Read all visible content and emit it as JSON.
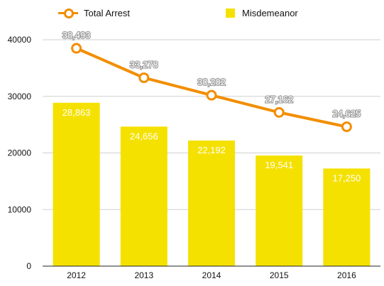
{
  "legend": {
    "line_label": "Total Arrest",
    "bar_label": "Misdemeanor"
  },
  "colors": {
    "line": "#f28e00",
    "bar": "#f5e100",
    "grid": "#d0d0d0",
    "label_stroke": "#9a9a9a"
  },
  "chart_data": {
    "type": "bar",
    "categories": [
      "2012",
      "2013",
      "2014",
      "2015",
      "2016"
    ],
    "series": [
      {
        "name": "Misdemeanor",
        "type": "bar",
        "values": [
          28863,
          24656,
          22192,
          19541,
          17250
        ],
        "labels": [
          "28,863",
          "24,656",
          "22,192",
          "19,541",
          "17,250"
        ]
      },
      {
        "name": "Total Arrest",
        "type": "line",
        "values": [
          38493,
          33278,
          30202,
          27162,
          24625
        ],
        "labels": [
          "38,493",
          "33,278",
          "30,202",
          "27,162",
          "24,625"
        ]
      }
    ],
    "yticks": [
      0,
      10000,
      20000,
      30000,
      40000
    ],
    "ylim": [
      0,
      40000
    ],
    "grid": true,
    "legend_position": "top"
  }
}
